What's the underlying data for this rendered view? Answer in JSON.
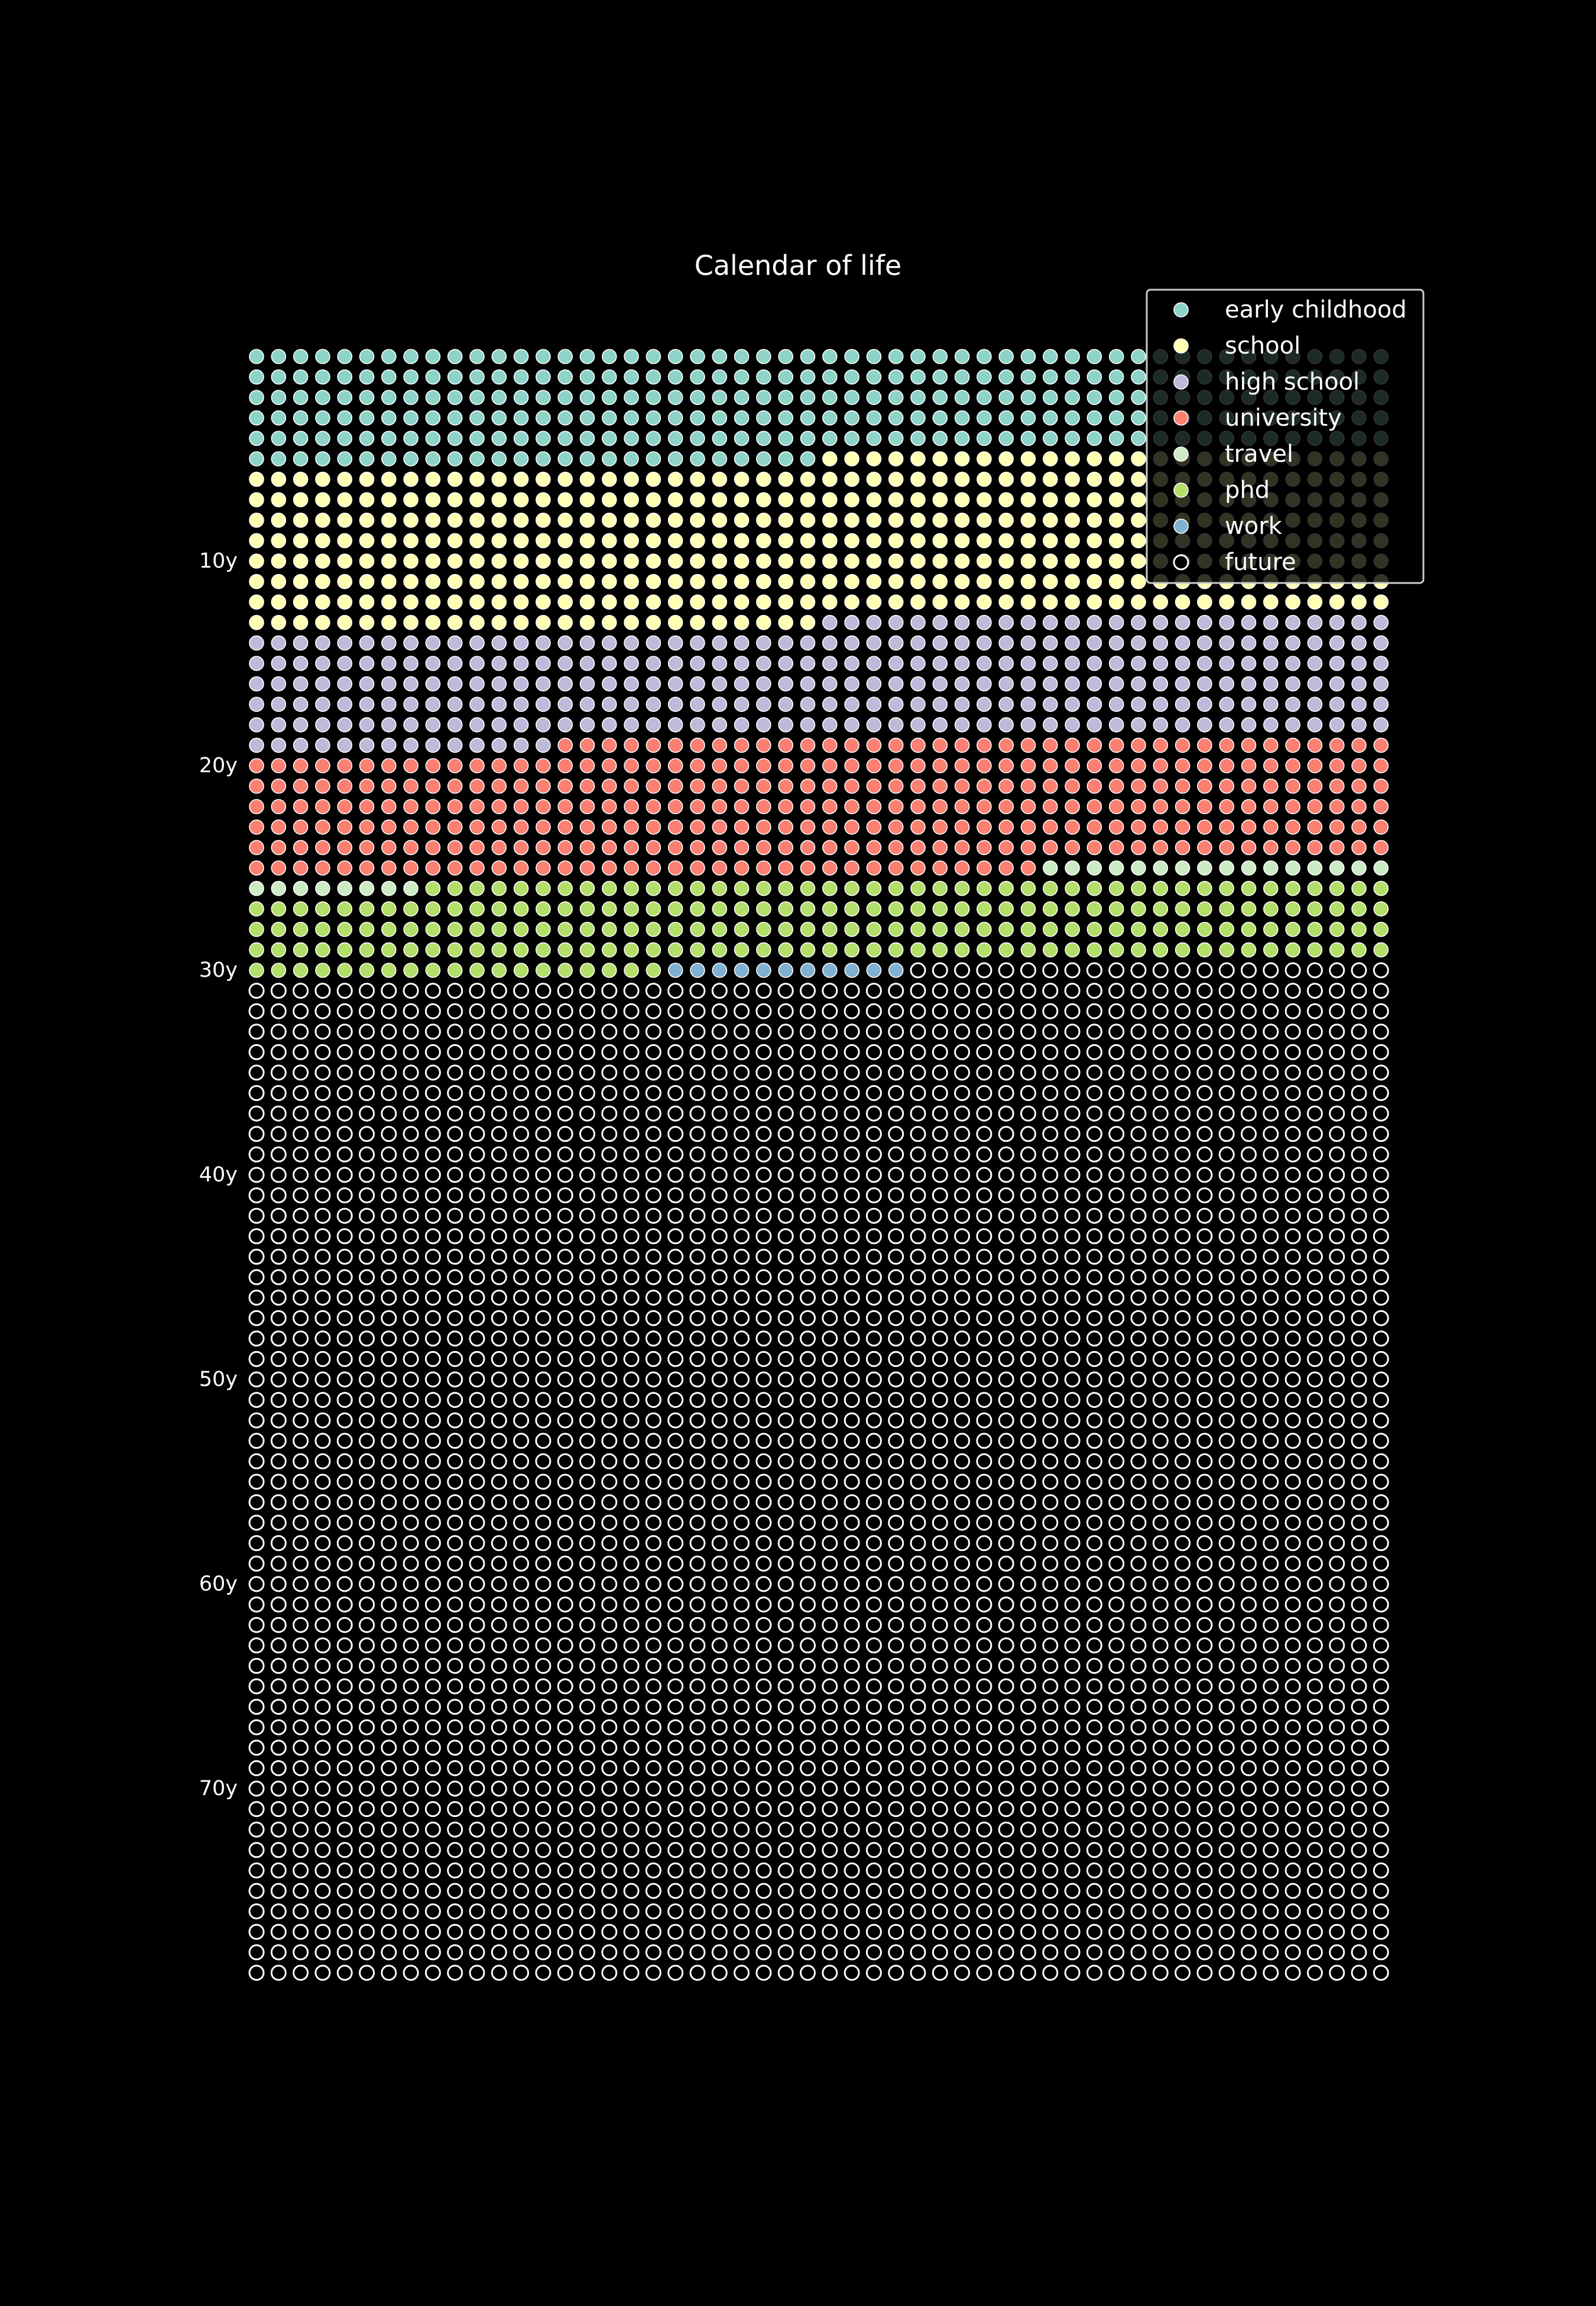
{
  "chart_data": {
    "type": "scatter",
    "title": "Calendar of life",
    "xlabel": "",
    "ylabel": "",
    "weeks_per_year": 52,
    "years": 80,
    "y_ticks": [
      {
        "year": 10,
        "label": "10y"
      },
      {
        "year": 20,
        "label": "20y"
      },
      {
        "year": 30,
        "label": "30y"
      },
      {
        "year": 40,
        "label": "40y"
      },
      {
        "year": 50,
        "label": "50y"
      },
      {
        "year": 60,
        "label": "60y"
      },
      {
        "year": 70,
        "label": "70y"
      }
    ],
    "grid": false,
    "legend_position": "top-right",
    "series": [
      {
        "name": "early childhood",
        "color": "#8dd3c7",
        "filled": true,
        "start_week": 0,
        "end_week": 286
      },
      {
        "name": "school",
        "color": "#ffffb3",
        "filled": true,
        "start_week": 286,
        "end_week": 702
      },
      {
        "name": "high school",
        "color": "#bebada",
        "filled": true,
        "start_week": 702,
        "end_week": 1002
      },
      {
        "name": "university",
        "color": "#fb8072",
        "filled": true,
        "start_week": 1002,
        "end_week": 1336
      },
      {
        "name": "travel",
        "color": "#ccebc5",
        "filled": true,
        "start_week": 1336,
        "end_week": 1360
      },
      {
        "name": "phd",
        "color": "#b3de69",
        "filled": true,
        "start_week": 1360,
        "end_week": 1579
      },
      {
        "name": "work",
        "color": "#80b1d3",
        "filled": true,
        "start_week": 1579,
        "end_week": 1590
      },
      {
        "name": "future",
        "color": "#ffffff",
        "filled": false,
        "start_week": 1590,
        "end_week": 4160
      }
    ]
  }
}
